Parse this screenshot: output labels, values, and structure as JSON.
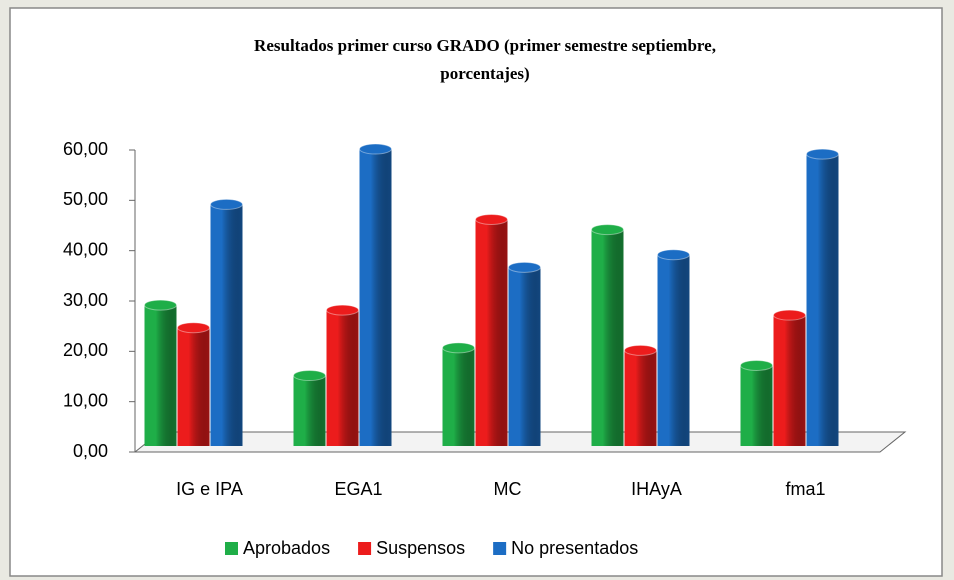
{
  "chart_data": {
    "type": "bar3d",
    "title": [
      "Resultados primer curso GRADO (primer semestre  septiembre,",
      "porcentajes)"
    ],
    "categories": [
      "IG e IPA",
      "EGA1",
      "MC",
      "IHAyA",
      "fma1"
    ],
    "series": [
      {
        "name": "Aprobados",
        "color": "#1fae48",
        "values": [
          28,
          14,
          19.5,
          43,
          16
        ]
      },
      {
        "name": "Suspensos",
        "color": "#ec1c1c",
        "values": [
          23.5,
          27,
          45,
          19,
          26
        ]
      },
      {
        "name": "No presentados",
        "color": "#1c6dc4",
        "values": [
          48,
          59,
          35.5,
          38,
          58
        ]
      }
    ],
    "ylim": [
      0,
      60
    ],
    "yticks": [
      {
        "value": 0,
        "label": "0,00"
      },
      {
        "value": 10,
        "label": "10,00"
      },
      {
        "value": 20,
        "label": "20,00"
      },
      {
        "value": 30,
        "label": "30,00"
      },
      {
        "value": 40,
        "label": "40,00"
      },
      {
        "value": 50,
        "label": "50,00"
      },
      {
        "value": 60,
        "label": "60,00"
      }
    ],
    "legend": "bottom"
  }
}
